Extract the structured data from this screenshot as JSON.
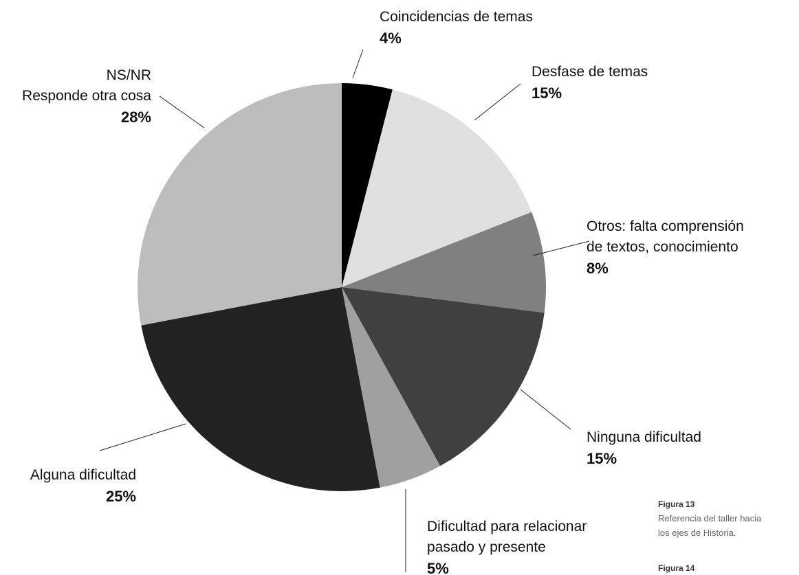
{
  "chart_data": {
    "type": "pie",
    "categories": [
      "Coincidencias de temas",
      "Desfase de temas",
      "Otros: falta comprensión\nde textos, conocimiento",
      "Ninguna dificultad",
      "Dificultad para relacionar\npasado y presente",
      "Alguna dificultad",
      "NS/NR\nResponde otra cosa"
    ],
    "values": [
      4,
      15,
      8,
      15,
      5,
      25,
      28
    ],
    "value_labels": [
      "4%",
      "15%",
      "8%",
      "15%",
      "5%",
      "25%",
      "28%"
    ],
    "colors": [
      "#000000",
      "#e0e0e0",
      "#808080",
      "#404040",
      "#a0a0a0",
      "#222222",
      "#bdbdbd"
    ]
  },
  "captions": [
    {
      "title": "Figura 13",
      "text": "Referencia del taller hacia\nlos ejes de Historia."
    },
    {
      "title": "Figura 14"
    }
  ]
}
